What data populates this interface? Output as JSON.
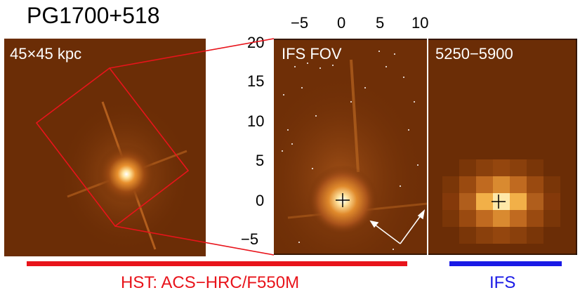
{
  "title": "PG1700+518",
  "panels": {
    "left": {
      "label": "45×45 kpc"
    },
    "middle": {
      "label": "IFS FOV"
    },
    "right": {
      "label": "5250−5900"
    }
  },
  "axes": {
    "top_ticks": [
      "−5",
      "0",
      "5",
      "10"
    ],
    "left_ticks": [
      "20",
      "15",
      "10",
      "5",
      "0",
      "−5"
    ]
  },
  "captions": {
    "hst": "HST: ACS−HRC/F550M",
    "ifs": "IFS"
  },
  "colors": {
    "hst_bar": "#e8141b",
    "ifs_bar": "#1a1ae6",
    "outline": "#e8141b",
    "panel_bg": "#6b2d06"
  }
}
